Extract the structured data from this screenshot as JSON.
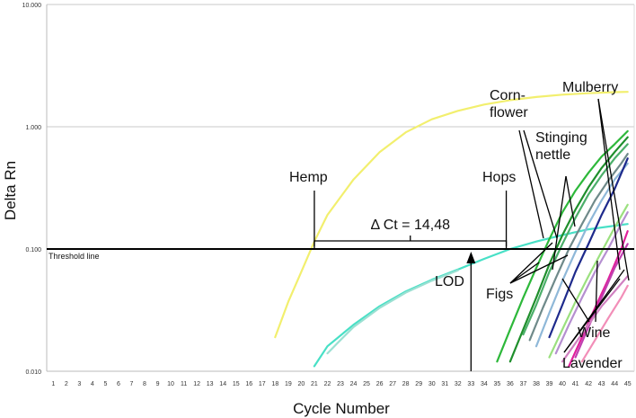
{
  "chart_data": {
    "type": "line",
    "xlabel": "Cycle Number",
    "ylabel": "Delta Rn",
    "xlim": [
      0.5,
      45.5
    ],
    "ylim": [
      0.01,
      10
    ],
    "yscale": "log",
    "x_ticks": [
      1,
      2,
      3,
      4,
      5,
      6,
      7,
      8,
      9,
      10,
      11,
      12,
      13,
      14,
      15,
      16,
      17,
      18,
      19,
      20,
      21,
      22,
      23,
      24,
      25,
      26,
      27,
      28,
      29,
      30,
      31,
      32,
      33,
      34,
      35,
      36,
      37,
      38,
      39,
      40,
      41,
      42,
      43,
      44,
      45
    ],
    "y_ticks": [
      {
        "value": 0.01,
        "label": "0.010"
      },
      {
        "value": 0.1,
        "label": "0.100"
      },
      {
        "value": 1,
        "label": "1.000"
      },
      {
        "value": 10,
        "label": "10.000"
      }
    ],
    "grid": true,
    "threshold": {
      "value": 0.1,
      "label": "Threshold line"
    },
    "series": [
      {
        "name": "Hemp",
        "color": "#f2ef6e",
        "x": [
          18,
          19,
          20,
          21,
          22,
          24,
          26,
          28,
          30,
          32,
          34,
          36,
          38,
          40,
          42,
          44,
          45
        ],
        "y": [
          0.019,
          0.037,
          0.065,
          0.115,
          0.19,
          0.37,
          0.62,
          0.9,
          1.15,
          1.35,
          1.52,
          1.65,
          1.75,
          1.83,
          1.88,
          1.92,
          1.93
        ]
      },
      {
        "name": "Hops",
        "color": "#48e0c6",
        "x": [
          21,
          22,
          24,
          26,
          28,
          30,
          32,
          34,
          36,
          38,
          40,
          42,
          44,
          45
        ],
        "y": [
          0.011,
          0.016,
          0.024,
          0.034,
          0.045,
          0.056,
          0.068,
          0.083,
          0.1,
          0.115,
          0.13,
          0.145,
          0.155,
          0.16
        ]
      },
      {
        "name": "",
        "color": "#9be0d2",
        "x": [
          22,
          23,
          24,
          26,
          28,
          30,
          32
        ],
        "y": [
          0.014,
          0.018,
          0.023,
          0.033,
          0.044,
          0.055,
          0.067
        ]
      },
      {
        "name": "",
        "color": "#2db83a",
        "x": [
          35,
          36,
          37,
          38,
          39,
          40,
          41,
          42,
          43,
          44,
          45
        ],
        "y": [
          0.012,
          0.022,
          0.04,
          0.07,
          0.12,
          0.2,
          0.3,
          0.42,
          0.57,
          0.72,
          0.92
        ]
      },
      {
        "name": "",
        "color": "#1f8f2c",
        "x": [
          36,
          37,
          38,
          39,
          40,
          41,
          42,
          43,
          44,
          45
        ],
        "y": [
          0.012,
          0.022,
          0.04,
          0.075,
          0.13,
          0.21,
          0.32,
          0.46,
          0.62,
          0.82
        ]
      },
      {
        "name": "",
        "color": "#4caf6a",
        "x": [
          37,
          38,
          39,
          40,
          41,
          42,
          43,
          44,
          45
        ],
        "y": [
          0.02,
          0.035,
          0.065,
          0.11,
          0.18,
          0.28,
          0.4,
          0.55,
          0.72
        ]
      },
      {
        "name": "",
        "color": "#6f8a8a",
        "x": [
          37.5,
          38.5,
          39.5,
          40.5,
          41.5,
          42.5,
          43.5,
          44.5,
          45
        ],
        "y": [
          0.018,
          0.033,
          0.058,
          0.1,
          0.16,
          0.25,
          0.36,
          0.5,
          0.6
        ]
      },
      {
        "name": "",
        "color": "#8fb8d8",
        "x": [
          38,
          39,
          40,
          41,
          42,
          43,
          44,
          45
        ],
        "y": [
          0.016,
          0.03,
          0.055,
          0.095,
          0.16,
          0.25,
          0.37,
          0.5
        ]
      },
      {
        "name": "",
        "color": "#1e2a8c",
        "x": [
          39,
          40,
          41,
          42,
          43,
          44,
          45
        ],
        "y": [
          0.019,
          0.035,
          0.065,
          0.11,
          0.19,
          0.31,
          0.55
        ]
      },
      {
        "name": "",
        "color": "#9be07f",
        "x": [
          39,
          40,
          41,
          42,
          43,
          44,
          45
        ],
        "y": [
          0.013,
          0.022,
          0.037,
          0.06,
          0.095,
          0.15,
          0.23
        ]
      },
      {
        "name": "",
        "color": "#b58fd0",
        "x": [
          39.5,
          40.5,
          41.5,
          42.5,
          43.5,
          44.5,
          45
        ],
        "y": [
          0.014,
          0.024,
          0.04,
          0.065,
          0.1,
          0.16,
          0.2
        ]
      },
      {
        "name": "",
        "color": "#e0209b",
        "x": [
          40.5,
          41.5,
          42.5,
          43.5,
          44.5,
          45
        ],
        "y": [
          0.011,
          0.019,
          0.033,
          0.056,
          0.1,
          0.14
        ]
      },
      {
        "name": "",
        "color": "#c040b0",
        "x": [
          41,
          42,
          43,
          44,
          45
        ],
        "y": [
          0.013,
          0.023,
          0.04,
          0.07,
          0.11
        ]
      },
      {
        "name": "",
        "color": "#d080c0",
        "x": [
          40,
          41,
          42,
          43,
          44,
          45
        ],
        "y": [
          0.012,
          0.017,
          0.024,
          0.034,
          0.045,
          0.06
        ]
      },
      {
        "name": "",
        "color": "#f28eb8",
        "x": [
          41.5,
          42.5,
          43.5,
          44.5,
          45
        ],
        "y": [
          0.012,
          0.018,
          0.027,
          0.04,
          0.05
        ]
      }
    ],
    "annotations": {
      "hemp": "Hemp",
      "hops": "Hops",
      "delta_ct": "Δ Ct = 14,48",
      "lod": "LOD",
      "cornflower": "Corn-\nflower",
      "mulberry": "Mulberry",
      "stinging_nettle": "Stinging\nnettle",
      "figs": "Figs",
      "wine": "Wine",
      "lavender": "Lavender"
    }
  }
}
